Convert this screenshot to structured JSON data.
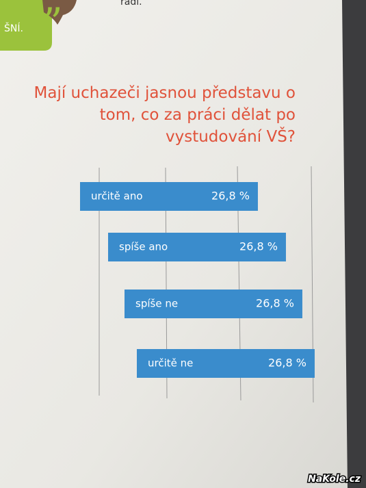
{
  "chart_data": {
    "type": "barh",
    "title": "Mají uchazeči jasnou představu o tom, co za práci dělat po vystudování VŠ?",
    "categories": [
      "určitě ano",
      "spíše ano",
      "spíše ne",
      "určitě ne"
    ],
    "values": [
      26.8,
      26.8,
      26.8,
      26.8
    ],
    "value_labels": [
      "26,8 %",
      "26,8 %",
      "26,8 %",
      "26,8 %"
    ],
    "color": "#3a8ccc",
    "xlim": [
      0,
      30
    ]
  },
  "fragments": {
    "top_text": "radi.",
    "badge_text": "ŠNÍ.",
    "watermark": "NaKole.cz"
  }
}
